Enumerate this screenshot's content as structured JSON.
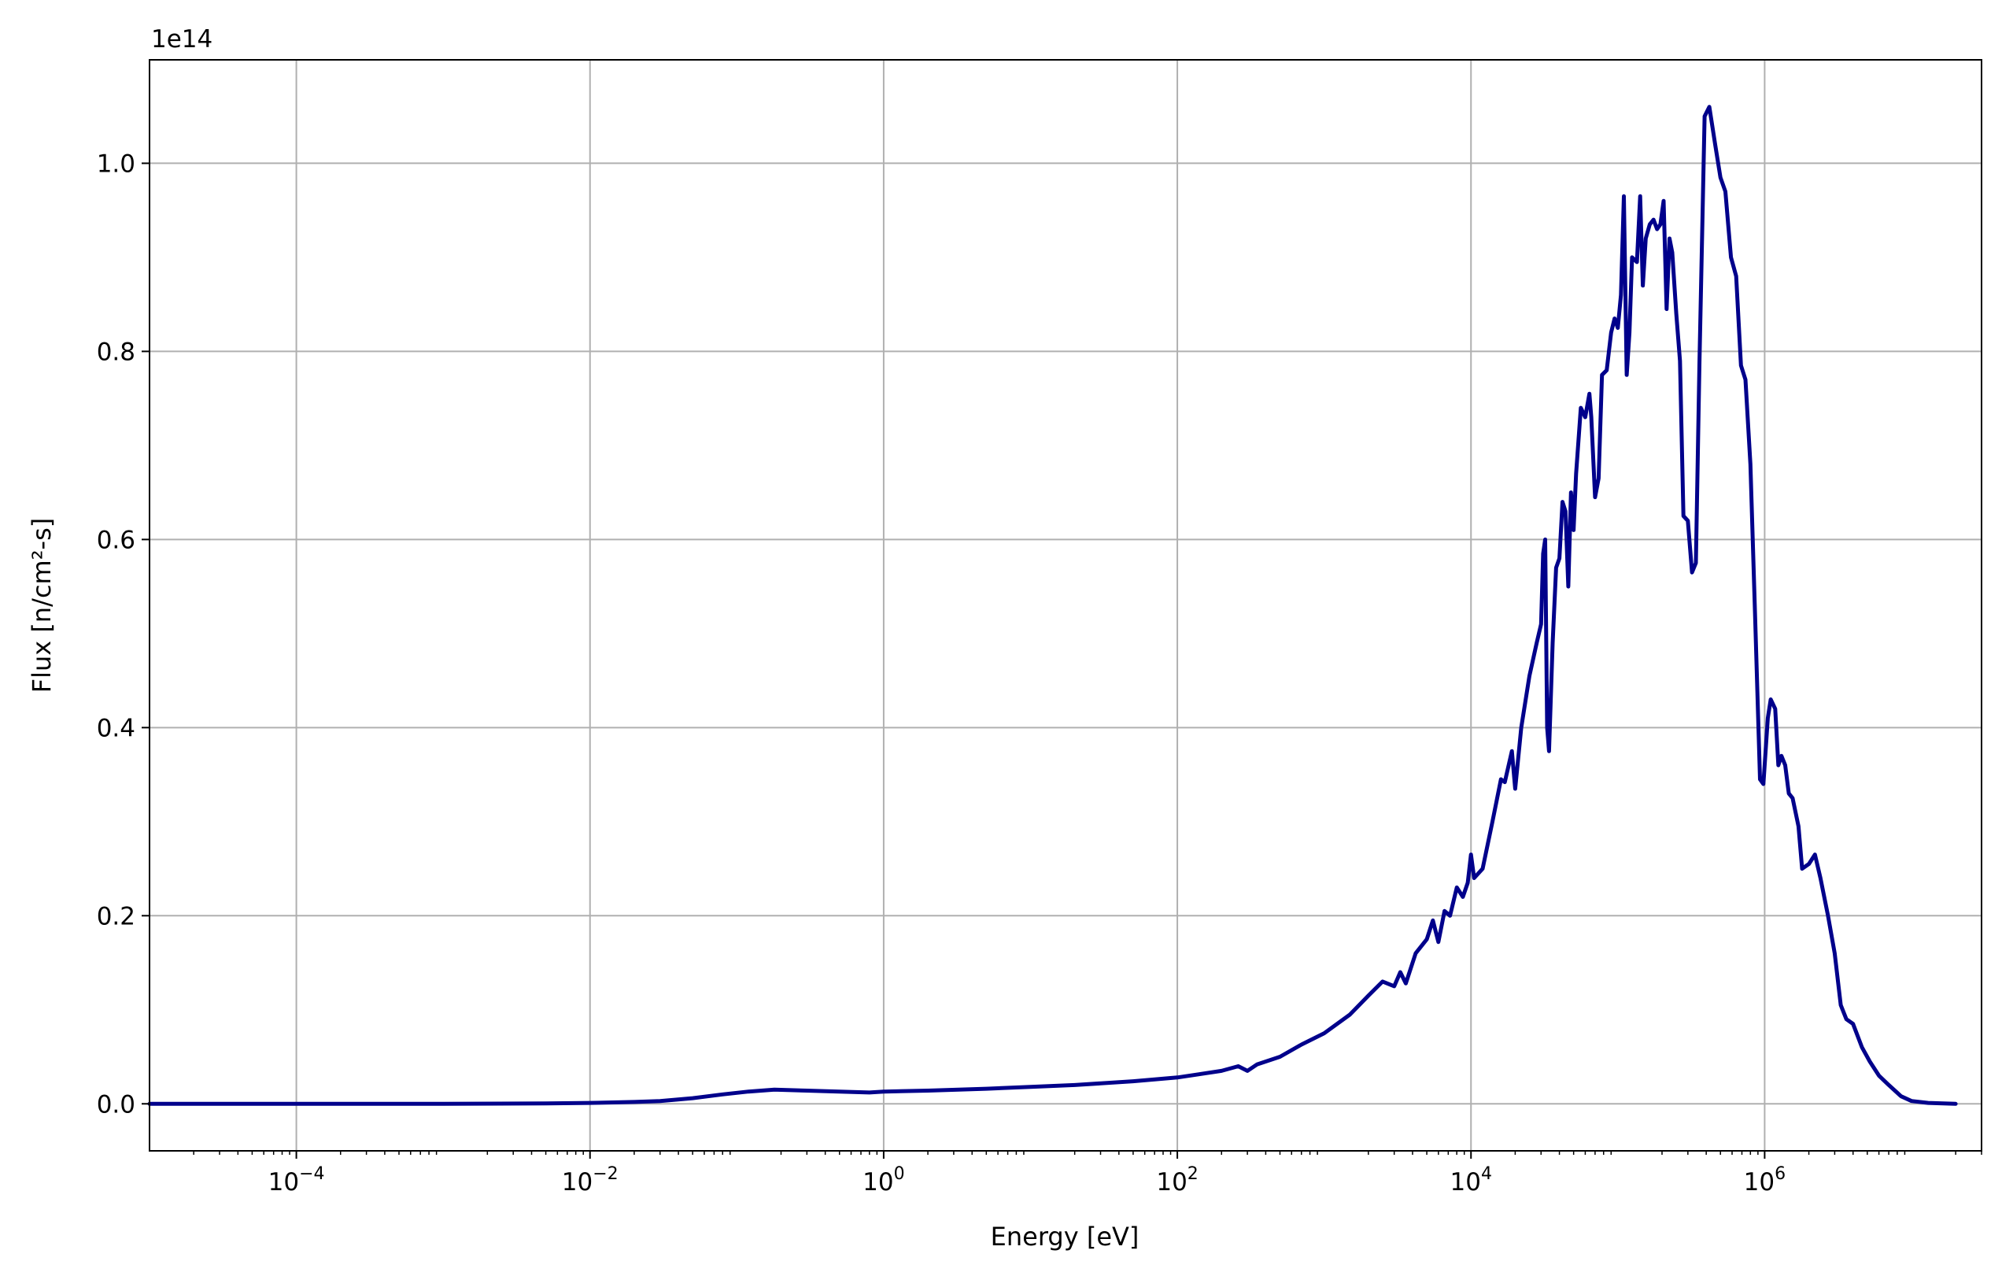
{
  "chart_data": {
    "type": "line",
    "xscale": "log",
    "xlabel": "Energy [eV]",
    "ylabel": "Flux [n/cm²-s]",
    "y_offset_label": "1e14",
    "xlim": [
      1e-05,
      30000000.0
    ],
    "ylim": [
      -0.05,
      1.11
    ],
    "x_ticks": [
      {
        "value": 0.0001,
        "base": "10",
        "exp": "−4"
      },
      {
        "value": 0.01,
        "base": "10",
        "exp": "−2"
      },
      {
        "value": 1,
        "base": "10",
        "exp": "0"
      },
      {
        "value": 100,
        "base": "10",
        "exp": "2"
      },
      {
        "value": 10000,
        "base": "10",
        "exp": "4"
      },
      {
        "value": 1000000,
        "base": "10",
        "exp": "6"
      }
    ],
    "y_ticks": [
      {
        "value": 0.0,
        "label": "0.0"
      },
      {
        "value": 0.2,
        "label": "0.2"
      },
      {
        "value": 0.4,
        "label": "0.4"
      },
      {
        "value": 0.6,
        "label": "0.6"
      },
      {
        "value": 0.8,
        "label": "0.8"
      },
      {
        "value": 1.0,
        "label": "1.0"
      }
    ],
    "grid": true,
    "series": [
      {
        "color": "#00008b",
        "points": [
          [
            1e-05,
            0.0
          ],
          [
            0.0001,
            0.0
          ],
          [
            0.001,
            0.0
          ],
          [
            0.005,
            0.0005
          ],
          [
            0.01,
            0.001
          ],
          [
            0.02,
            0.002
          ],
          [
            0.03,
            0.003
          ],
          [
            0.05,
            0.006
          ],
          [
            0.08,
            0.01
          ],
          [
            0.12,
            0.013
          ],
          [
            0.18,
            0.015
          ],
          [
            0.3,
            0.014
          ],
          [
            0.5,
            0.013
          ],
          [
            0.8,
            0.012
          ],
          [
            1.0,
            0.013
          ],
          [
            2.0,
            0.014
          ],
          [
            5.0,
            0.016
          ],
          [
            10.0,
            0.018
          ],
          [
            20.0,
            0.02
          ],
          [
            50.0,
            0.024
          ],
          [
            100.0,
            0.028
          ],
          [
            200.0,
            0.035
          ],
          [
            260.0,
            0.04
          ],
          [
            300.0,
            0.035
          ],
          [
            350.0,
            0.042
          ],
          [
            500.0,
            0.05
          ],
          [
            700.0,
            0.063
          ],
          [
            1000.0,
            0.075
          ],
          [
            1500.0,
            0.095
          ],
          [
            2000.0,
            0.115
          ],
          [
            2500.0,
            0.13
          ],
          [
            3000.0,
            0.125
          ],
          [
            3300.0,
            0.14
          ],
          [
            3600.0,
            0.128
          ],
          [
            4200.0,
            0.16
          ],
          [
            5000.0,
            0.175
          ],
          [
            5500.0,
            0.195
          ],
          [
            6000.0,
            0.172
          ],
          [
            6600.0,
            0.205
          ],
          [
            7200.0,
            0.2
          ],
          [
            8000.0,
            0.23
          ],
          [
            8800.0,
            0.22
          ],
          [
            9500.0,
            0.235
          ],
          [
            10000.0,
            0.265
          ],
          [
            10500.0,
            0.24
          ],
          [
            12000.0,
            0.25
          ],
          [
            14000.0,
            0.3
          ],
          [
            16000.0,
            0.345
          ],
          [
            17000.0,
            0.342
          ],
          [
            19000.0,
            0.375
          ],
          [
            20000.0,
            0.335
          ],
          [
            22000.0,
            0.4
          ],
          [
            25000.0,
            0.455
          ],
          [
            28000.0,
            0.49
          ],
          [
            30000.0,
            0.51
          ],
          [
            31000.0,
            0.585
          ],
          [
            32000.0,
            0.6
          ],
          [
            33000.0,
            0.4
          ],
          [
            34000.0,
            0.375
          ],
          [
            36000.0,
            0.49
          ],
          [
            38000.0,
            0.57
          ],
          [
            40000.0,
            0.58
          ],
          [
            42000.0,
            0.64
          ],
          [
            44000.0,
            0.63
          ],
          [
            46000.0,
            0.55
          ],
          [
            48000.0,
            0.65
          ],
          [
            50000.0,
            0.61
          ],
          [
            52000.0,
            0.67
          ],
          [
            56000.0,
            0.74
          ],
          [
            60000.0,
            0.73
          ],
          [
            64000.0,
            0.755
          ],
          [
            66000.0,
            0.73
          ],
          [
            70000.0,
            0.645
          ],
          [
            74000.0,
            0.665
          ],
          [
            78000.0,
            0.775
          ],
          [
            84000.0,
            0.78
          ],
          [
            90000.0,
            0.82
          ],
          [
            95000.0,
            0.835
          ],
          [
            100000.0,
            0.825
          ],
          [
            105000.0,
            0.86
          ],
          [
            110000.0,
            0.965
          ],
          [
            115000.0,
            0.775
          ],
          [
            120000.0,
            0.82
          ],
          [
            125000.0,
            0.9
          ],
          [
            135000.0,
            0.895
          ],
          [
            142000.0,
            0.965
          ],
          [
            148000.0,
            0.87
          ],
          [
            155000.0,
            0.92
          ],
          [
            165000.0,
            0.935
          ],
          [
            175000.0,
            0.94
          ],
          [
            185000.0,
            0.93
          ],
          [
            195000.0,
            0.935
          ],
          [
            205000.0,
            0.96
          ],
          [
            215000.0,
            0.845
          ],
          [
            225000.0,
            0.92
          ],
          [
            235000.0,
            0.905
          ],
          [
            250000.0,
            0.84
          ],
          [
            265000.0,
            0.79
          ],
          [
            280000.0,
            0.625
          ],
          [
            300000.0,
            0.62
          ],
          [
            320000.0,
            0.565
          ],
          [
            340000.0,
            0.575
          ],
          [
            360000.0,
            0.79
          ],
          [
            390000.0,
            1.05
          ],
          [
            420000.0,
            1.06
          ],
          [
            460000.0,
            1.02
          ],
          [
            500000.0,
            0.985
          ],
          [
            540000.0,
            0.97
          ],
          [
            590000.0,
            0.9
          ],
          [
            640000.0,
            0.88
          ],
          [
            690000.0,
            0.785
          ],
          [
            740000.0,
            0.77
          ],
          [
            800000.0,
            0.68
          ],
          [
            860000.0,
            0.52
          ],
          [
            930000.0,
            0.345
          ],
          [
            980000.0,
            0.34
          ],
          [
            1050000.0,
            0.41
          ],
          [
            1100000.0,
            0.43
          ],
          [
            1180000.0,
            0.42
          ],
          [
            1240000.0,
            0.36
          ],
          [
            1300000.0,
            0.37
          ],
          [
            1380000.0,
            0.36
          ],
          [
            1460000.0,
            0.33
          ],
          [
            1550000.0,
            0.325
          ],
          [
            1700000.0,
            0.295
          ],
          [
            1800000.0,
            0.25
          ],
          [
            2000000.0,
            0.255
          ],
          [
            2200000.0,
            0.265
          ],
          [
            2400000.0,
            0.24
          ],
          [
            2700000.0,
            0.2
          ],
          [
            3000000.0,
            0.16
          ],
          [
            3300000.0,
            0.105
          ],
          [
            3600000.0,
            0.09
          ],
          [
            4000000.0,
            0.085
          ],
          [
            4600000.0,
            0.06
          ],
          [
            5200000.0,
            0.045
          ],
          [
            6000000.0,
            0.03
          ],
          [
            7000000.0,
            0.02
          ],
          [
            8500000.0,
            0.008
          ],
          [
            10000000.0,
            0.003
          ],
          [
            13000000.0,
            0.001
          ],
          [
            20000000.0,
            0.0
          ]
        ]
      }
    ]
  }
}
